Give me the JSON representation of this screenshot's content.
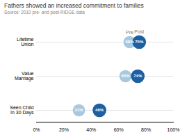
{
  "chart_data": {
    "type": "dumbbell",
    "orientation": "horizontal",
    "title": "Fathers showed an increased commitment to families",
    "subtitle": "Source: 2010 pre- and post-RIDGE data",
    "categories": [
      "Lifetime\nUnion",
      "Value\nMarriage",
      "Seen Child\nIn 30 Days"
    ],
    "series": [
      {
        "name": "Pre",
        "color": "#a8c8e0",
        "values": [
          68,
          65,
          31
        ],
        "value_labels": [
          "68%",
          "65%",
          "31%"
        ],
        "radius": 4.5
      },
      {
        "name": "Post",
        "color": "#1e5fa0",
        "values": [
          75,
          74,
          46
        ],
        "value_labels": [
          "75%",
          "74%",
          "46%"
        ],
        "radius": 5.0
      }
    ],
    "xlim": [
      0,
      100
    ],
    "xticks": [
      {
        "value": 0,
        "label": "0%"
      },
      {
        "value": 20,
        "label": "20%"
      },
      {
        "value": 40,
        "label": "40%"
      },
      {
        "value": 60,
        "label": "60%"
      },
      {
        "value": 80,
        "label": "80%"
      },
      {
        "value": 100,
        "label": "100%"
      }
    ],
    "grid": true,
    "legend": "top",
    "data_labels": true
  }
}
